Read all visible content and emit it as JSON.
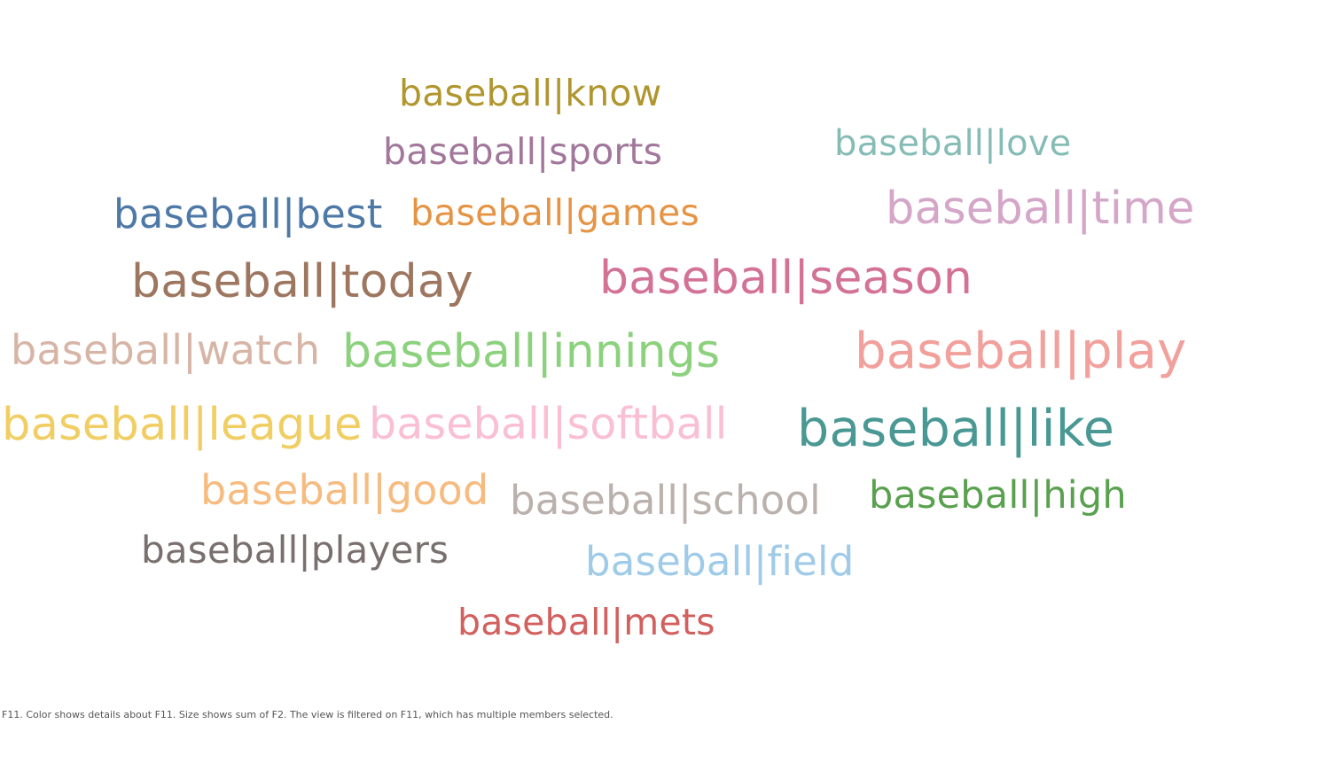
{
  "chart_data": {
    "type": "word-cloud",
    "caption": "F11.  Color shows details about F11.  Size shows sum of F2. The view is filtered on F11, which has multiple members selected.",
    "words": [
      {
        "text": "baseball|know",
        "color": "#b0962f"
      },
      {
        "text": "baseball|sports",
        "color": "#a2779b"
      },
      {
        "text": "baseball|love",
        "color": "#86bcb6"
      },
      {
        "text": "baseball|best",
        "color": "#4e79a7"
      },
      {
        "text": "baseball|games",
        "color": "#e49444"
      },
      {
        "text": "baseball|time",
        "color": "#d4a6c8"
      },
      {
        "text": "baseball|today",
        "color": "#9d7660"
      },
      {
        "text": "baseball|season",
        "color": "#d37295"
      },
      {
        "text": "baseball|watch",
        "color": "#d7b5a6"
      },
      {
        "text": "baseball|innings",
        "color": "#8cd17d"
      },
      {
        "text": "baseball|play",
        "color": "#f1a09c"
      },
      {
        "text": "baseball|league",
        "color": "#f1ce63"
      },
      {
        "text": "baseball|softball",
        "color": "#fabfd2"
      },
      {
        "text": "baseball|like",
        "color": "#499894"
      },
      {
        "text": "baseball|good",
        "color": "#f6bb7f"
      },
      {
        "text": "baseball|school",
        "color": "#bab0ac"
      },
      {
        "text": "baseball|high",
        "color": "#59a14f"
      },
      {
        "text": "baseball|players",
        "color": "#79706e"
      },
      {
        "text": "baseball|field",
        "color": "#a0cbe8"
      },
      {
        "text": "baseball|mets",
        "color": "#d1605e"
      }
    ]
  }
}
